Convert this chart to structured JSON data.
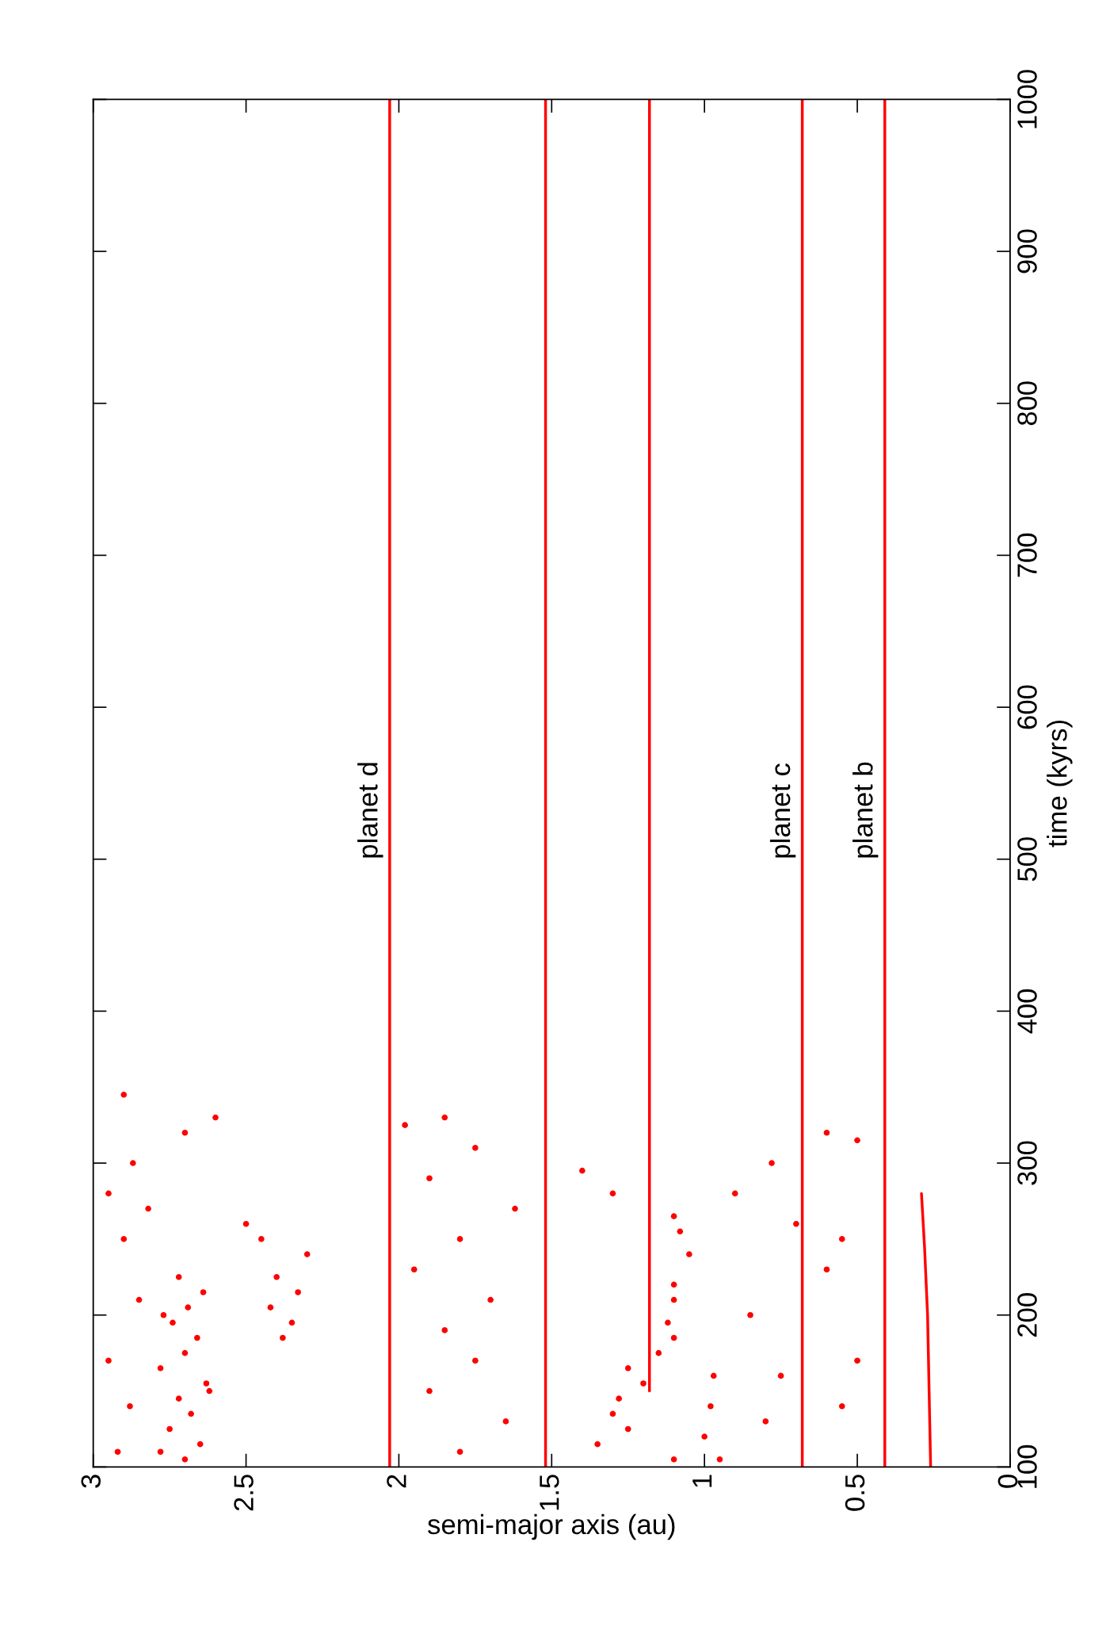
{
  "chart_data": {
    "type": "scatter",
    "xlabel": "semi-major axis (au)",
    "ylabel": "time (kyrs)",
    "xlim": [
      3,
      0
    ],
    "xticks": [
      0,
      0.5,
      1,
      1.5,
      2,
      2.5,
      3
    ],
    "ylim": [
      100,
      1000
    ],
    "yticks": [
      100,
      200,
      300,
      400,
      500,
      600,
      700,
      800,
      900,
      1000
    ],
    "grid": false,
    "series": [
      {
        "type": "line",
        "color": "#ff0000",
        "x": [
          0.41,
          0.41
        ],
        "values": [
          100,
          1000
        ]
      },
      {
        "type": "line",
        "color": "#ff0000",
        "x": [
          0.68,
          0.68
        ],
        "values": [
          100,
          1000
        ]
      },
      {
        "type": "line",
        "color": "#ff0000",
        "x": [
          0.26,
          0.27,
          0.28,
          0.29
        ],
        "values": [
          100,
          200,
          245,
          280
        ]
      },
      {
        "type": "line",
        "color": "#ff0000",
        "x": [
          2.03,
          2.03
        ],
        "values": [
          100,
          1000
        ]
      },
      {
        "type": "line",
        "color": "#ff0000",
        "x": [
          1.52,
          1.52
        ],
        "values": [
          100,
          1000
        ]
      },
      {
        "type": "line",
        "color": "#ff0000",
        "x": [
          1.18,
          1.18
        ],
        "values": [
          150,
          1000
        ]
      },
      {
        "color": "#ff0000",
        "marker": "circle",
        "x": [
          2.7,
          2.65,
          2.75,
          2.68,
          2.72,
          2.63,
          2.78,
          2.7,
          2.66,
          2.74,
          2.69,
          2.64,
          2.72,
          2.78,
          2.62,
          2.77,
          2.38,
          2.35,
          2.42,
          2.33,
          2.4,
          2.3,
          2.45,
          2.5,
          2.92,
          2.88,
          2.95,
          2.85,
          2.9,
          2.82,
          2.95,
          2.87,
          2.7,
          2.6,
          2.9,
          1.8,
          1.65,
          1.9,
          1.75,
          1.85,
          1.7,
          1.95,
          1.8,
          1.62,
          1.9,
          1.75,
          1.98,
          1.85,
          1.1,
          1.35,
          1.25,
          1.3,
          1.28,
          1.2,
          1.25,
          1.15,
          1.1,
          1.12,
          1.1,
          1.1,
          1.05,
          1.08,
          1.1,
          1.3,
          1.4,
          0.95,
          1.0,
          0.98,
          0.97,
          0.8,
          0.75,
          0.85,
          0.6,
          0.55,
          0.7,
          0.9,
          0.78,
          0.5,
          0.6,
          0.55,
          0.5
        ],
        "values": [
          105,
          115,
          125,
          135,
          145,
          155,
          165,
          175,
          185,
          195,
          205,
          215,
          225,
          110,
          150,
          200,
          185,
          195,
          205,
          215,
          225,
          240,
          250,
          260,
          110,
          140,
          170,
          210,
          250,
          270,
          280,
          300,
          320,
          330,
          345,
          110,
          130,
          150,
          170,
          190,
          210,
          230,
          250,
          270,
          290,
          310,
          325,
          330,
          105,
          115,
          125,
          135,
          145,
          155,
          165,
          175,
          185,
          195,
          210,
          220,
          240,
          255,
          265,
          280,
          295,
          105,
          120,
          140,
          160,
          130,
          160,
          200,
          230,
          250,
          260,
          280,
          300,
          315,
          320,
          140,
          170
        ]
      }
    ],
    "annotations": [
      {
        "text": "planet d",
        "x": 2.03,
        "y": 500
      },
      {
        "text": "planet c",
        "x": 0.68,
        "y": 500
      },
      {
        "text": "planet b",
        "x": 0.41,
        "y": 500
      }
    ]
  }
}
